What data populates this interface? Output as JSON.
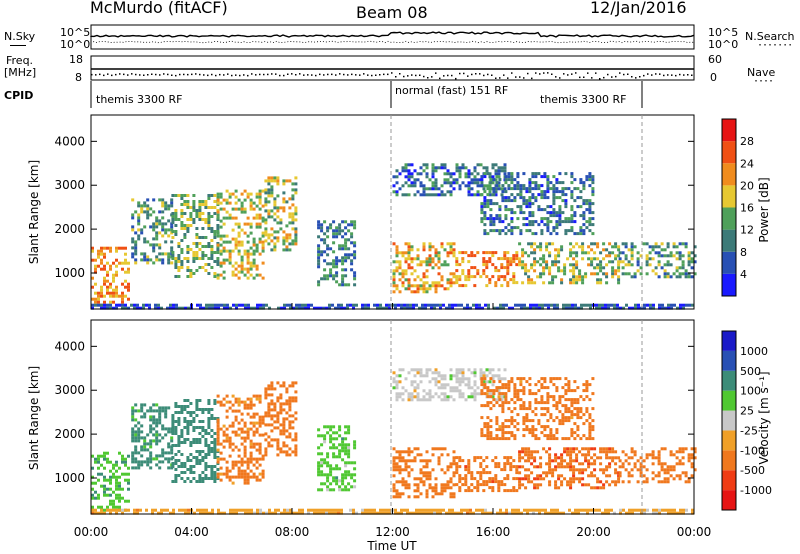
{
  "header": {
    "station": "McMurdo (fitACF)",
    "beam": "Beam 08",
    "date": "12/Jan/2016"
  },
  "top_panels": {
    "nsky_label": "N.Sky",
    "nsearch_label": "N.Search",
    "nsearch_marker": "·······",
    "freq_label_line1": "Freq.",
    "freq_label_line2": "[MHz]",
    "nave_label": "Nave",
    "nave_marker": "····",
    "cpid_label": "CPID",
    "noise_left_ticks": [
      "10^5",
      "10^0"
    ],
    "noise_right_ticks": [
      "10^5",
      "10^0"
    ],
    "freq_left_ticks": [
      "18",
      "8"
    ],
    "freq_right_ticks": [
      "60",
      "0"
    ],
    "cpid_segments": [
      {
        "label": "themis 3300 RF",
        "start_hour": 0,
        "end_hour": 12
      },
      {
        "label": "normal (fast) 151 RF",
        "start_hour": 12,
        "end_hour": 22
      },
      {
        "label": "themis 3300 RF",
        "start_hour": 22,
        "end_hour": 24
      }
    ]
  },
  "colors": {
    "power_scale": [
      "#1a1aff",
      "#2850b4",
      "#3c7a78",
      "#4fa05a",
      "#e6c832",
      "#f08c1e",
      "#f05014",
      "#e61414"
    ],
    "velocity_scale": [
      "#e61414",
      "#f03c14",
      "#f0781e",
      "#f0a028",
      "#c8c8c8",
      "#50c832",
      "#3c8c78",
      "#2850b4",
      "#1a1ac8"
    ]
  },
  "chart_data": [
    {
      "type": "heatmap",
      "name_id": "power",
      "xlabel": "",
      "ylabel": "Slant Range [km]",
      "x_ticks": [
        "00:00",
        "04:00",
        "08:00",
        "12:00",
        "16:00",
        "20:00",
        "00:00"
      ],
      "xlim_hours": [
        0,
        24
      ],
      "y_ticks": [
        1000,
        2000,
        3000,
        4000
      ],
      "ylim": [
        180,
        4600
      ],
      "colorbar_label": "Power [dB]",
      "colorbar_ticks": [
        4,
        8,
        12,
        16,
        20,
        24,
        28
      ],
      "clim": [
        0,
        32
      ],
      "regions": [
        {
          "t0": 0.0,
          "t1": 1.5,
          "r0": 250,
          "r1": 1600,
          "level": 22
        },
        {
          "t0": 1.6,
          "t1": 3.2,
          "r0": 1200,
          "r1": 2700,
          "level": 12
        },
        {
          "t0": 3.2,
          "t1": 5.0,
          "r0": 900,
          "r1": 2800,
          "level": 14
        },
        {
          "t0": 5.0,
          "t1": 6.9,
          "r0": 900,
          "r1": 2900,
          "level": 18
        },
        {
          "t0": 6.9,
          "t1": 8.2,
          "r0": 1500,
          "r1": 3200,
          "level": 16
        },
        {
          "t0": 9.0,
          "t1": 10.5,
          "r0": 700,
          "r1": 2200,
          "level": 10
        },
        {
          "t0": 12.0,
          "t1": 14.5,
          "r0": 600,
          "r1": 1700,
          "level": 20
        },
        {
          "t0": 12.0,
          "t1": 16.5,
          "r0": 2800,
          "r1": 3500,
          "level": 8
        },
        {
          "t0": 14.5,
          "t1": 17.0,
          "r0": 700,
          "r1": 1500,
          "level": 22
        },
        {
          "t0": 17.0,
          "t1": 21.0,
          "r0": 800,
          "r1": 1700,
          "level": 16
        },
        {
          "t0": 21.0,
          "t1": 24.0,
          "r0": 900,
          "r1": 1700,
          "level": 12
        },
        {
          "t0": 15.5,
          "t1": 20.0,
          "r0": 1900,
          "r1": 3300,
          "level": 9
        },
        {
          "t0": 0.0,
          "t1": 24.0,
          "r0": 180,
          "r1": 300,
          "level": 6
        }
      ]
    },
    {
      "type": "heatmap",
      "name_id": "velocity",
      "xlabel": "Time UT",
      "ylabel": "Slant Range [km]",
      "x_ticks": [
        "00:00",
        "04:00",
        "08:00",
        "12:00",
        "16:00",
        "20:00",
        "00:00"
      ],
      "xlim_hours": [
        0,
        24
      ],
      "y_ticks": [
        1000,
        2000,
        3000,
        4000
      ],
      "ylim": [
        180,
        4600
      ],
      "colorbar_label": "Velocity [m s⁻¹]",
      "colorbar_ticks": [
        1000,
        500,
        100,
        25,
        -25,
        -100,
        -500,
        -1000
      ],
      "regions": [
        {
          "t0": 0.0,
          "t1": 1.5,
          "r0": 250,
          "r1": 1600,
          "vel": 80
        },
        {
          "t0": 1.6,
          "t1": 3.2,
          "r0": 1200,
          "r1": 2700,
          "vel": 150
        },
        {
          "t0": 3.2,
          "t1": 5.0,
          "r0": 900,
          "r1": 2800,
          "vel": 200
        },
        {
          "t0": 5.0,
          "t1": 6.9,
          "r0": 900,
          "r1": 2900,
          "vel": -150
        },
        {
          "t0": 6.9,
          "t1": 8.2,
          "r0": 1500,
          "r1": 3200,
          "vel": -250
        },
        {
          "t0": 9.0,
          "t1": 10.5,
          "r0": 700,
          "r1": 2200,
          "vel": 60
        },
        {
          "t0": 12.0,
          "t1": 14.5,
          "r0": 600,
          "r1": 1700,
          "vel": -300
        },
        {
          "t0": 12.0,
          "t1": 16.5,
          "r0": 2800,
          "r1": 3500,
          "vel": 0
        },
        {
          "t0": 14.5,
          "t1": 17.0,
          "r0": 700,
          "r1": 1500,
          "vel": -350
        },
        {
          "t0": 17.0,
          "t1": 21.0,
          "r0": 800,
          "r1": 1700,
          "vel": -400
        },
        {
          "t0": 21.0,
          "t1": 24.0,
          "r0": 900,
          "r1": 1700,
          "vel": -300
        },
        {
          "t0": 15.5,
          "t1": 20.0,
          "r0": 1900,
          "r1": 3300,
          "vel": -200
        },
        {
          "t0": 0.0,
          "t1": 24.0,
          "r0": 180,
          "r1": 300,
          "vel": -60
        }
      ]
    }
  ]
}
